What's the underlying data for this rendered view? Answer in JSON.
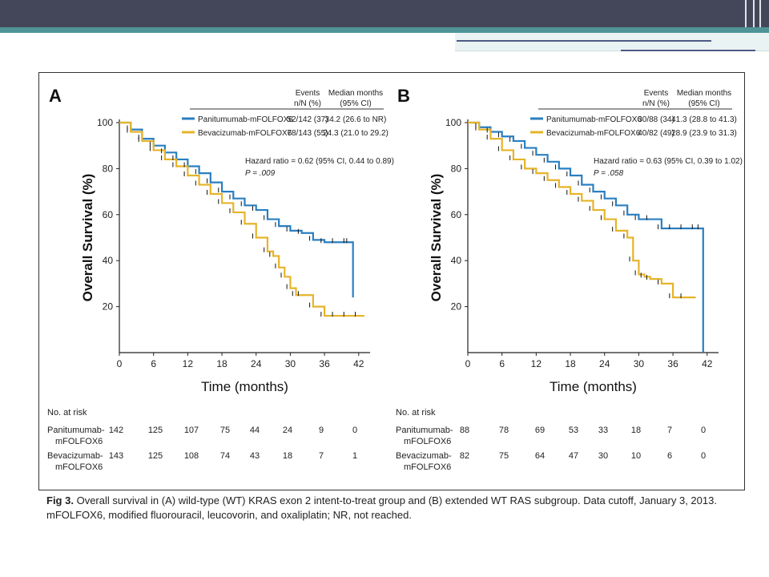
{
  "colors": {
    "panitumumab": "#2a7fc1",
    "bevacizumab": "#e6b42a",
    "topbar": "#44475a",
    "teal": "#4f9496"
  },
  "panels": [
    {
      "letter": "A",
      "header": {
        "events_label": "Events",
        "events_sub": "n/N (%)",
        "median_label": "Median months",
        "median_sub": "(95% CI)"
      },
      "legend": [
        {
          "name": "Panitumumab-mFOLFOX6",
          "events": "52/142 (37)",
          "median": "34.2 (26.6 to NR)"
        },
        {
          "name": "Bevacizumab-mFOLFOX6",
          "events": "78/143 (55)",
          "median": "24.3 (21.0 to 29.2)"
        }
      ],
      "hr_text": "Hazard ratio = 0.62 (95% CI, 0.44 to 0.89)",
      "p_text": "P = .009",
      "ylabel": "Overall Survival (%)",
      "xlabel": "Time (months)",
      "risk": {
        "title": "No. at risk",
        "rows": [
          {
            "label1": "Panitumumab-",
            "label2": "mFOLFOX6",
            "values": [
              "142",
              "125",
              "107",
              "75",
              "44",
              "24",
              "9",
              "0"
            ]
          },
          {
            "label1": "Bevacizumab-",
            "label2": "mFOLFOX6",
            "values": [
              "143",
              "125",
              "108",
              "74",
              "43",
              "18",
              "7",
              "1"
            ]
          }
        ]
      }
    },
    {
      "letter": "B",
      "header": {
        "events_label": "Events",
        "events_sub": "n/N (%)",
        "median_label": "Median months",
        "median_sub": "(95% CI)"
      },
      "legend": [
        {
          "name": "Panitumumab-mFOLFOX6",
          "events": "30/88 (34)",
          "median": "41.3 (28.8 to 41.3)"
        },
        {
          "name": "Bevacizumab-mFOLFOX6",
          "events": "40/82 (49)",
          "median": "28.9 (23.9 to 31.3)"
        }
      ],
      "hr_text": "Hazard ratio = 0.63 (95% CI, 0.39 to 1.02)",
      "p_text": "P = .058",
      "ylabel": "Overall Survival (%)",
      "xlabel": "Time (months)",
      "risk": {
        "title": "No. at risk",
        "rows": [
          {
            "label1": "Panitumumab-",
            "label2": "mFOLFOX6",
            "values": [
              "88",
              "78",
              "69",
              "53",
              "33",
              "18",
              "7",
              "0"
            ]
          },
          {
            "label1": "Bevacizumab-",
            "label2": "mFOLFOX6",
            "values": [
              "82",
              "75",
              "64",
              "47",
              "30",
              "10",
              "6",
              "0"
            ]
          }
        ]
      }
    }
  ],
  "caption": {
    "fig": "Fig 3.",
    "text": "Overall survival in (A) wild-type (WT) KRAS exon 2 intent-to-treat group and (B) extended WT RAS subgroup. Data cutoff, January 3, 2013. mFOLFOX6, modified fluorouracil, leucovorin, and oxaliplatin; NR, not reached."
  },
  "chart_data": [
    {
      "type": "line",
      "title": "A",
      "xlabel": "Time (months)",
      "ylabel": "Overall Survival (%)",
      "xlim": [
        0,
        44
      ],
      "ylim": [
        0,
        100
      ],
      "xticks": [
        0,
        6,
        12,
        18,
        24,
        30,
        36,
        42
      ],
      "yticks": [
        20,
        40,
        60,
        80,
        100
      ],
      "series": [
        {
          "name": "Panitumumab-mFOLFOX6",
          "x": [
            0,
            2,
            4,
            6,
            8,
            10,
            12,
            14,
            16,
            18,
            20,
            22,
            24,
            26,
            28,
            30,
            32,
            34,
            36,
            38,
            40,
            40.5,
            41
          ],
          "y": [
            100,
            97,
            93,
            90,
            87,
            84,
            81,
            78,
            74,
            70,
            67,
            64,
            62,
            58,
            55,
            53,
            52,
            49,
            48,
            48,
            48,
            48,
            24
          ]
        },
        {
          "name": "Bevacizumab-mFOLFOX6",
          "x": [
            0,
            2,
            4,
            6,
            8,
            10,
            12,
            14,
            16,
            18,
            20,
            22,
            24,
            26,
            27,
            28,
            29,
            30,
            31,
            32,
            34,
            36,
            38,
            40,
            42,
            43
          ],
          "y": [
            100,
            96,
            92,
            88,
            84,
            81,
            77,
            73,
            69,
            65,
            61,
            56,
            50,
            44,
            42,
            37,
            33,
            28,
            25,
            25,
            20,
            16,
            16,
            16,
            16,
            16
          ]
        }
      ]
    },
    {
      "type": "line",
      "title": "B",
      "xlabel": "Time (months)",
      "ylabel": "Overall Survival (%)",
      "xlim": [
        0,
        44
      ],
      "ylim": [
        0,
        100
      ],
      "xticks": [
        0,
        6,
        12,
        18,
        24,
        30,
        36,
        42
      ],
      "yticks": [
        20,
        40,
        60,
        80,
        100
      ],
      "series": [
        {
          "name": "Panitumumab-mFOLFOX6",
          "x": [
            0,
            2,
            4,
            6,
            8,
            10,
            12,
            14,
            16,
            18,
            20,
            22,
            24,
            26,
            28,
            30,
            32,
            34,
            36,
            38,
            40,
            41,
            41.3
          ],
          "y": [
            100,
            98,
            96,
            94,
            92,
            89,
            86,
            83,
            80,
            77,
            73,
            70,
            67,
            64,
            60,
            58,
            58,
            54,
            54,
            54,
            54,
            54,
            0
          ]
        },
        {
          "name": "Bevacizumab-mFOLFOX6",
          "x": [
            0,
            2,
            4,
            6,
            8,
            10,
            12,
            14,
            16,
            18,
            20,
            22,
            24,
            26,
            28,
            29,
            30,
            31,
            32,
            34,
            36,
            38,
            40
          ],
          "y": [
            100,
            97,
            93,
            88,
            84,
            80,
            78,
            75,
            72,
            69,
            66,
            62,
            58,
            53,
            50,
            40,
            34,
            33,
            32,
            30,
            24,
            24,
            24
          ]
        }
      ]
    }
  ]
}
